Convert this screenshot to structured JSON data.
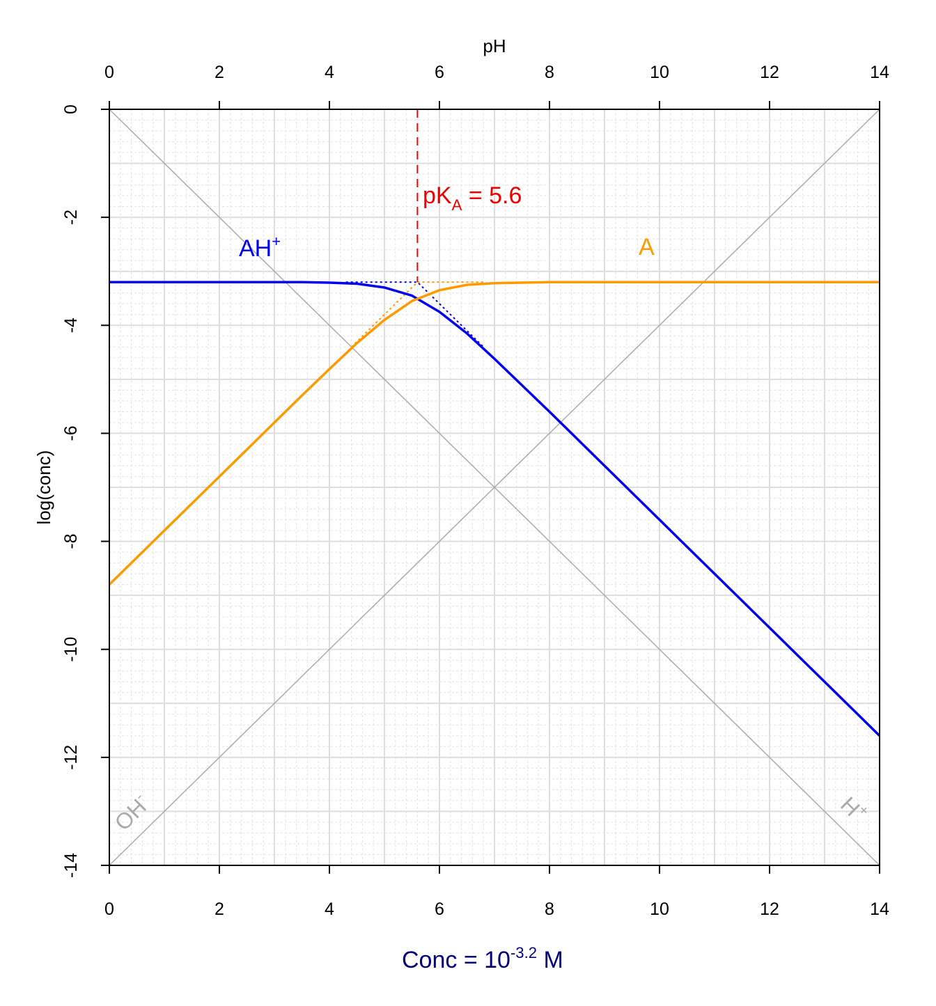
{
  "chart_data": {
    "type": "line",
    "x_label_top": "pH",
    "y_label": "log(conc)",
    "x_label_bottom": {
      "text": "Conc = 10",
      "sup": "-3.2",
      "after": " M",
      "color": "#000080"
    },
    "xlim": [
      0,
      14
    ],
    "ylim": [
      -14,
      0
    ],
    "xticks": [
      0,
      2,
      4,
      6,
      8,
      10,
      12,
      14
    ],
    "yticks": [
      0,
      -2,
      -4,
      -6,
      -8,
      -10,
      -12,
      -14
    ],
    "grid": true,
    "grid_step": 1,
    "minor_grid_step": 0.2,
    "x": [
      0,
      0.5,
      1,
      1.5,
      2,
      2.5,
      3,
      3.5,
      4,
      4.5,
      5,
      5.5,
      6,
      6.5,
      7,
      7.5,
      8,
      8.5,
      9,
      9.5,
      10,
      10.5,
      11,
      11.5,
      12,
      12.5,
      13,
      13.5,
      14
    ],
    "series": [
      {
        "color": "#0000ee",
        "values": [
          -3.2,
          -3.2,
          -3.2,
          -3.2,
          -3.2,
          -3.2,
          -3.2,
          -3.2,
          -3.21,
          -3.23,
          -3.3,
          -3.45,
          -3.75,
          -4.15,
          -4.62,
          -5.11,
          -5.6,
          -6.1,
          -6.6,
          -7.1,
          -7.6,
          -8.1,
          -8.6,
          -9.1,
          -9.6,
          -10.1,
          -10.6,
          -11.1,
          -11.6
        ]
      },
      {
        "color": "#ff9900",
        "values": [
          -8.8,
          -8.3,
          -7.8,
          -7.3,
          -6.8,
          -6.3,
          -5.8,
          -5.3,
          -4.81,
          -4.33,
          -3.9,
          -3.55,
          -3.35,
          -3.25,
          -3.22,
          -3.21,
          -3.2,
          -3.2,
          -3.2,
          -3.2,
          -3.2,
          -3.2,
          -3.2,
          -3.2,
          -3.2,
          -3.2,
          -3.2,
          -3.2,
          -3.2
        ]
      }
    ],
    "lines": [
      {
        "x": [
          0,
          14
        ],
        "values": [
          0,
          -14
        ],
        "color": "#aaaaaa",
        "style": "solid"
      },
      {
        "x": [
          0,
          14
        ],
        "values": [
          -14,
          0
        ],
        "color": "#aaaaaa",
        "style": "solid"
      },
      {
        "x": [
          4.3,
          5.6,
          6.8
        ],
        "values": [
          -3.2,
          -3.2,
          -4.4
        ],
        "color": "#0000ee",
        "style": "dotted"
      },
      {
        "x": [
          4.4,
          5.6,
          6.8
        ],
        "values": [
          -4.4,
          -3.2,
          -3.2
        ],
        "color": "#ff9900",
        "style": "dotted"
      },
      {
        "x": [
          5.6,
          5.6
        ],
        "values": [
          0,
          -3.2
        ],
        "color": "#ee0000",
        "style": "dashed"
      }
    ],
    "annotations": [
      {
        "text": "AH",
        "sup": "+",
        "color": "#0000ee"
      },
      {
        "text": "A",
        "color": "#ff9900"
      },
      {
        "text": "pK",
        "sub": "A",
        "after": " = 5.6",
        "color": "#ee0000"
      },
      {
        "text": "OH",
        "sup": "-",
        "color": "#aaaaaa"
      },
      {
        "text": "H",
        "sup": "+",
        "color": "#aaaaaa"
      }
    ]
  }
}
